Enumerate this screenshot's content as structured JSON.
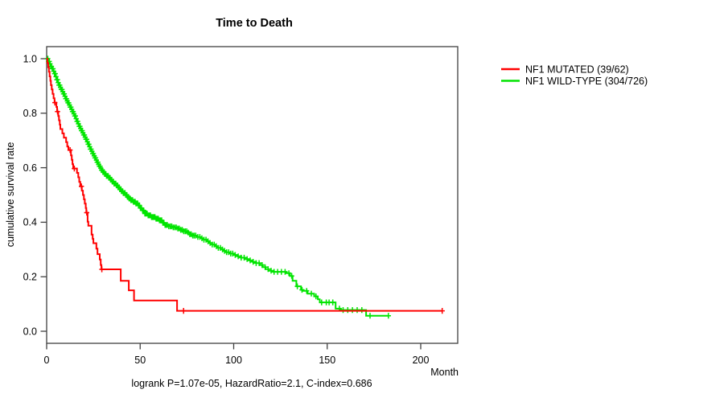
{
  "title": "Time to Death",
  "footer": "logrank P=1.07e-05, HazardRatio=2.1, C-index=0.686",
  "axes": {
    "x_label": "Month",
    "y_label": "cumulative survival rate",
    "x_ticks": [
      0,
      50,
      100,
      150,
      200
    ],
    "y_ticks": [
      "0.0",
      "0.2",
      "0.4",
      "0.6",
      "0.8",
      "1.0"
    ]
  },
  "legend": {
    "items": [
      {
        "label": "NF1 MUTATED (39/62)",
        "color": "#ff0000"
      },
      {
        "label": "NF1 WILD-TYPE (304/726)",
        "color": "#00e400"
      }
    ]
  },
  "colors": {
    "mutated": "#ff0000",
    "wildtype": "#00e400",
    "frame": "#404040",
    "background": "#ffffff"
  },
  "chart_data": {
    "type": "line",
    "subtype": "kaplan-meier-step",
    "title": "Time to Death",
    "xlabel": "Month",
    "ylabel": "cumulative survival rate",
    "xlim": [
      0,
      220
    ],
    "ylim": [
      0,
      1
    ],
    "x_ticks": [
      0,
      50,
      100,
      150,
      200
    ],
    "y_ticks": [
      0.0,
      0.2,
      0.4,
      0.6,
      0.8,
      1.0
    ],
    "grid": false,
    "legend_position": "right-outside",
    "series": [
      {
        "name": "NF1 MUTATED (39/62)",
        "events": 39,
        "n": 62,
        "color": "#ff0000",
        "steps": [
          [
            0,
            1.0
          ],
          [
            0.4,
            0.984
          ],
          [
            0.8,
            0.968
          ],
          [
            1.2,
            0.952
          ],
          [
            1.6,
            0.935
          ],
          [
            2.0,
            0.919
          ],
          [
            2.3,
            0.903
          ],
          [
            2.7,
            0.887
          ],
          [
            3.2,
            0.871
          ],
          [
            3.7,
            0.855
          ],
          [
            4.2,
            0.839
          ],
          [
            5.2,
            0.823
          ],
          [
            5.6,
            0.806
          ],
          [
            6.2,
            0.79
          ],
          [
            6.6,
            0.774
          ],
          [
            7.0,
            0.758
          ],
          [
            7.3,
            0.742
          ],
          [
            8.4,
            0.726
          ],
          [
            9.2,
            0.71
          ],
          [
            10.4,
            0.694
          ],
          [
            11.0,
            0.678
          ],
          [
            11.6,
            0.665
          ],
          [
            13.0,
            0.645
          ],
          [
            13.4,
            0.629
          ],
          [
            13.8,
            0.613
          ],
          [
            14.2,
            0.597
          ],
          [
            16.2,
            0.581
          ],
          [
            16.9,
            0.565
          ],
          [
            17.4,
            0.548
          ],
          [
            18.0,
            0.532
          ],
          [
            18.8,
            0.516
          ],
          [
            19.4,
            0.5
          ],
          [
            19.9,
            0.484
          ],
          [
            20.4,
            0.468
          ],
          [
            20.9,
            0.452
          ],
          [
            21.2,
            0.435
          ],
          [
            21.9,
            0.402
          ],
          [
            22.3,
            0.387
          ],
          [
            24.0,
            0.355
          ],
          [
            24.6,
            0.339
          ],
          [
            25.0,
            0.323
          ],
          [
            26.6,
            0.303
          ],
          [
            27.2,
            0.283
          ],
          [
            28.4,
            0.263
          ],
          [
            28.9,
            0.243
          ],
          [
            29.3,
            0.227
          ],
          [
            39.6,
            0.185
          ],
          [
            43.9,
            0.15
          ],
          [
            46.7,
            0.113
          ],
          [
            69.7,
            0.075
          ],
          [
            211.5,
            0.075
          ]
        ],
        "censor_times": [
          4.4,
          5.8,
          12.5,
          14.8,
          18.6,
          21.4,
          29.5,
          73.2,
          211.5
        ]
      },
      {
        "name": "NF1 WILD-TYPE (304/726)",
        "events": 304,
        "n": 726,
        "color": "#00e400",
        "steps": [
          [
            0,
            1.0
          ],
          [
            0.8,
            0.99
          ],
          [
            1.5,
            0.981
          ],
          [
            2.2,
            0.972
          ],
          [
            2.9,
            0.963
          ],
          [
            3.6,
            0.954
          ],
          [
            4.2,
            0.945
          ],
          [
            4.8,
            0.934
          ],
          [
            5.4,
            0.923
          ],
          [
            6.0,
            0.912
          ],
          [
            6.6,
            0.903
          ],
          [
            7.2,
            0.895
          ],
          [
            7.8,
            0.887
          ],
          [
            8.4,
            0.879
          ],
          [
            9.0,
            0.871
          ],
          [
            9.6,
            0.862
          ],
          [
            10.2,
            0.853
          ],
          [
            10.8,
            0.845
          ],
          [
            11.4,
            0.838
          ],
          [
            12.0,
            0.83
          ],
          [
            12.6,
            0.822
          ],
          [
            13.2,
            0.814
          ],
          [
            13.8,
            0.806
          ],
          [
            14.4,
            0.798
          ],
          [
            15.0,
            0.79
          ],
          [
            15.6,
            0.78
          ],
          [
            16.2,
            0.77
          ],
          [
            16.8,
            0.761
          ],
          [
            17.4,
            0.752
          ],
          [
            18.0,
            0.744
          ],
          [
            18.6,
            0.736
          ],
          [
            19.2,
            0.728
          ],
          [
            19.8,
            0.72
          ],
          [
            20.4,
            0.712
          ],
          [
            21.0,
            0.704
          ],
          [
            21.6,
            0.695
          ],
          [
            22.2,
            0.686
          ],
          [
            22.8,
            0.677
          ],
          [
            23.4,
            0.668
          ],
          [
            24.0,
            0.66
          ],
          [
            24.6,
            0.652
          ],
          [
            25.2,
            0.644
          ],
          [
            25.8,
            0.636
          ],
          [
            26.4,
            0.628
          ],
          [
            27.0,
            0.62
          ],
          [
            27.6,
            0.612
          ],
          [
            28.2,
            0.605
          ],
          [
            28.8,
            0.598
          ],
          [
            29.4,
            0.591
          ],
          [
            30.0,
            0.584
          ],
          [
            31.0,
            0.577
          ],
          [
            32.0,
            0.57
          ],
          [
            33.0,
            0.563
          ],
          [
            34.0,
            0.556
          ],
          [
            35.0,
            0.549
          ],
          [
            36.0,
            0.542
          ],
          [
            37.0,
            0.535
          ],
          [
            38.0,
            0.528
          ],
          [
            39.0,
            0.521
          ],
          [
            40.0,
            0.514
          ],
          [
            41.0,
            0.507
          ],
          [
            42.0,
            0.5
          ],
          [
            43.0,
            0.493
          ],
          [
            44.0,
            0.487
          ],
          [
            45.0,
            0.481
          ],
          [
            46.0,
            0.475
          ],
          [
            47.5,
            0.469
          ],
          [
            49.0,
            0.462
          ],
          [
            49.8,
            0.452
          ],
          [
            51.0,
            0.443
          ],
          [
            52.5,
            0.432
          ],
          [
            54.0,
            0.425
          ],
          [
            56.0,
            0.419
          ],
          [
            58.0,
            0.413
          ],
          [
            60.0,
            0.407
          ],
          [
            62.0,
            0.398
          ],
          [
            63.0,
            0.39
          ],
          [
            65.0,
            0.385
          ],
          [
            67.0,
            0.381
          ],
          [
            69.5,
            0.377
          ],
          [
            71.0,
            0.372
          ],
          [
            73.0,
            0.367
          ],
          [
            75.0,
            0.362
          ],
          [
            76.5,
            0.356
          ],
          [
            78.0,
            0.351
          ],
          [
            80.0,
            0.346
          ],
          [
            82.0,
            0.341
          ],
          [
            84.0,
            0.336
          ],
          [
            85.5,
            0.33
          ],
          [
            87.0,
            0.324
          ],
          [
            88.5,
            0.318
          ],
          [
            90.0,
            0.312
          ],
          [
            91.5,
            0.306
          ],
          [
            93.0,
            0.3
          ],
          [
            94.5,
            0.295
          ],
          [
            96.0,
            0.29
          ],
          [
            98.0,
            0.285
          ],
          [
            100.0,
            0.28
          ],
          [
            102.0,
            0.275
          ],
          [
            104.0,
            0.27
          ],
          [
            106.0,
            0.265
          ],
          [
            108.0,
            0.26
          ],
          [
            110.0,
            0.255
          ],
          [
            112.0,
            0.25
          ],
          [
            114.0,
            0.243
          ],
          [
            115.5,
            0.235
          ],
          [
            117.0,
            0.228
          ],
          [
            118.5,
            0.222
          ],
          [
            121.0,
            0.218
          ],
          [
            128.0,
            0.213
          ],
          [
            130.0,
            0.203
          ],
          [
            131.5,
            0.185
          ],
          [
            133.5,
            0.165
          ],
          [
            136.0,
            0.152
          ],
          [
            137.0,
            0.148
          ],
          [
            139.5,
            0.138
          ],
          [
            143.0,
            0.128
          ],
          [
            145.0,
            0.117
          ],
          [
            146.0,
            0.106
          ],
          [
            154.5,
            0.083
          ],
          [
            157.0,
            0.078
          ],
          [
            170.8,
            0.057
          ],
          [
            183.0,
            0.057
          ]
        ],
        "censor_times": [
          0.6,
          1,
          1.4,
          1.8,
          2.2,
          2.6,
          3,
          3.4,
          3.8,
          4.2,
          4.6,
          5,
          5.4,
          5.8,
          6.2,
          6.6,
          7,
          7.4,
          7.8,
          8.2,
          8.6,
          9,
          9.4,
          9.8,
          10.2,
          10.6,
          11,
          11.4,
          11.8,
          12.2,
          12.6,
          13,
          13.4,
          13.8,
          14.2,
          14.6,
          15,
          15.4,
          15.8,
          16.2,
          16.6,
          17,
          17.4,
          17.8,
          18.2,
          18.6,
          19,
          19.4,
          19.8,
          20.2,
          20.6,
          21,
          21.4,
          21.8,
          22.2,
          22.6,
          23,
          23.4,
          23.8,
          24.2,
          24.6,
          25,
          25.4,
          25.8,
          26.2,
          26.6,
          27,
          27.4,
          27.8,
          28.2,
          28.6,
          29,
          29.4,
          29.8,
          30.2,
          30.65,
          31.1,
          31.55,
          32,
          32.45,
          32.9,
          33.35,
          33.8,
          34.25,
          34.7,
          35.15,
          35.6,
          36.05,
          36.5,
          36.95,
          37.4,
          37.85,
          38.3,
          38.75,
          39.2,
          39.65,
          40.1,
          40.55,
          41,
          41.45,
          41.9,
          42.35,
          42.8,
          43.25,
          43.7,
          44.15,
          44.6,
          45.05,
          45.5,
          45.95,
          46.4,
          46.85,
          47.3,
          47.75,
          48.2,
          48.65,
          49.1,
          49.55,
          50.1,
          50.7,
          51.3,
          51.9,
          52.5,
          53.1,
          53.7,
          54.3,
          54.9,
          55.5,
          56.1,
          56.7,
          57.3,
          57.9,
          58.5,
          59.1,
          59.7,
          60.3,
          60.9,
          61.5,
          62.1,
          62.7,
          63.3,
          63.9,
          64.5,
          65.3,
          66.1,
          66.9,
          67.7,
          68.5,
          69.3,
          70.1,
          70.9,
          71.7,
          72.5,
          73.3,
          74.1,
          74.9,
          75.7,
          76.5,
          77.3,
          78.1,
          78.9,
          79.7,
          80.8,
          81.9,
          83,
          84.1,
          85.2,
          86.3,
          87.4,
          88.5,
          89.6,
          90.7,
          91.8,
          92.9,
          94,
          95.1,
          96.2,
          97.3,
          98.4,
          99.5,
          100.8,
          102.4,
          104,
          105.6,
          107.2,
          108.8,
          110.4,
          112,
          113.6,
          115.2,
          116.8,
          118.4,
          120,
          121.6,
          123.5,
          125.5,
          127.5,
          129.5,
          131,
          134,
          136.5,
          139,
          141.5,
          144,
          147,
          149.5,
          151,
          153,
          156.5,
          158.5,
          161,
          163.5,
          166,
          168.5,
          172.9,
          182.7
        ]
      }
    ]
  }
}
